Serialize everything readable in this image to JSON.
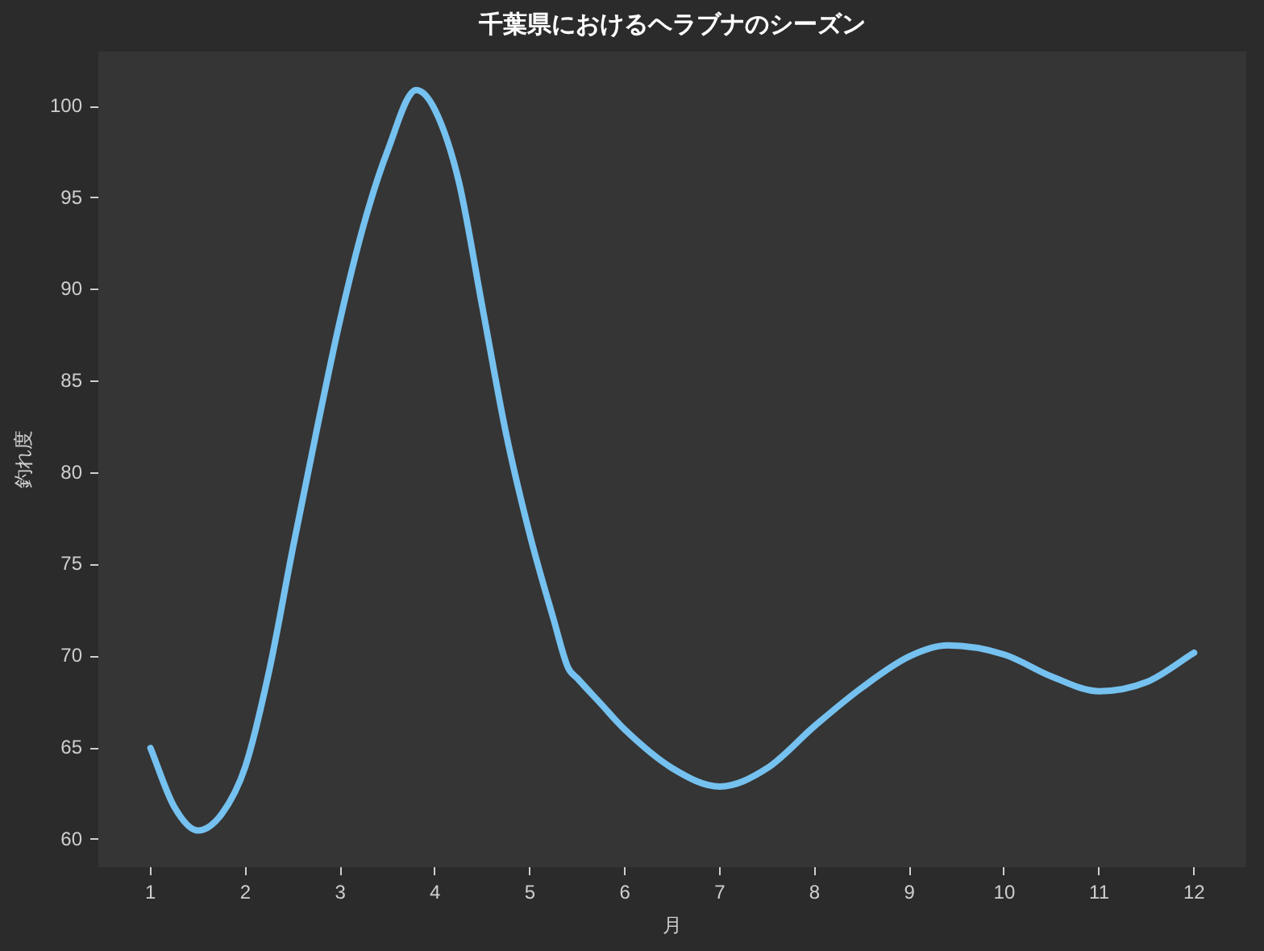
{
  "chart_data": {
    "type": "line",
    "title": "千葉県におけるヘラブナのシーズン",
    "xlabel": "月",
    "ylabel": "釣れ度",
    "x": [
      1,
      1.25,
      1.5,
      1.75,
      2,
      2.25,
      2.5,
      2.75,
      3,
      3.25,
      3.5,
      3.8,
      4,
      4.25,
      4.5,
      4.75,
      5,
      5.25,
      5.4,
      5.5,
      5.75,
      6,
      6.5,
      7,
      7.5,
      8,
      8.5,
      9,
      9.4,
      10,
      10.5,
      11,
      11.5,
      12
    ],
    "series": [
      {
        "color": "#75c1f0",
        "values": [
          65,
          61.8,
          60.5,
          61.4,
          64,
          69.2,
          75.9,
          82.3,
          88.4,
          93.6,
          97.6,
          100.9,
          99.8,
          95.9,
          89,
          82.1,
          76.6,
          72,
          69.4,
          68.8,
          67.4,
          66,
          63.9,
          62.9,
          63.9,
          66.2,
          68.3,
          70,
          70.6,
          70.1,
          68.9,
          68.1,
          68.6,
          70.2
        ]
      }
    ],
    "xlim": [
      0.45,
      12.55
    ],
    "ylim": [
      58.5,
      103
    ],
    "xticks": [
      1,
      2,
      3,
      4,
      5,
      6,
      7,
      8,
      9,
      10,
      11,
      12
    ],
    "yticks": [
      60,
      65,
      70,
      75,
      80,
      85,
      90,
      95,
      100
    ],
    "marker": "none",
    "line_style": "solid"
  }
}
